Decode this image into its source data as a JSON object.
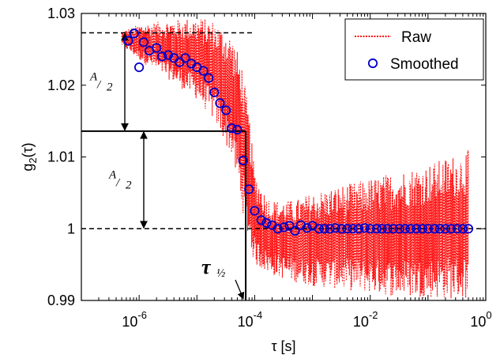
{
  "chart_data": {
    "type": "line",
    "title": "",
    "xlabel": "τ [s]",
    "ylabel": "g2(τ)",
    "ylabel_main": "g",
    "ylabel_sub": "2",
    "ylabel_rest": "(τ)",
    "x_scale": "log",
    "xlim": [
      1e-07,
      1
    ],
    "ylim": [
      0.99,
      1.03
    ],
    "grid": false,
    "legend_position": "top-right",
    "x_ticks": [
      {
        "value": 1e-06,
        "base": "10",
        "exp": "-6"
      },
      {
        "value": 0.0001,
        "base": "10",
        "exp": "-4"
      },
      {
        "value": 0.01,
        "base": "10",
        "exp": "-2"
      },
      {
        "value": 1,
        "base": "10",
        "exp": "0"
      }
    ],
    "y_ticks": [
      {
        "value": 0.99,
        "label": "0.99"
      },
      {
        "value": 1.0,
        "label": "1"
      },
      {
        "value": 1.01,
        "label": "1.01"
      },
      {
        "value": 1.02,
        "label": "1.02"
      },
      {
        "value": 1.03,
        "label": "1.03"
      }
    ],
    "series": [
      {
        "name": "Raw",
        "color": "#ff0000",
        "style": "dotted",
        "envelope_x": [
          5e-07,
          1e-06,
          3e-06,
          1e-05,
          2e-05,
          4e-05,
          6e-05,
          8e-05,
          0.0001,
          0.00015,
          0.0002,
          0.0005,
          0.001,
          0.003,
          0.01,
          0.03,
          0.1,
          0.5
        ],
        "envelope_upper": [
          1.0275,
          1.0285,
          1.029,
          1.0295,
          1.029,
          1.027,
          1.023,
          1.016,
          1.008,
          1.005,
          1.004,
          1.004,
          1.005,
          1.006,
          1.007,
          1.008,
          1.009,
          1.011
        ],
        "envelope_lower": [
          1.0255,
          1.0235,
          1.021,
          1.018,
          1.015,
          1.01,
          1.003,
          0.998,
          0.995,
          0.994,
          0.9935,
          0.9925,
          0.992,
          0.9915,
          0.991,
          0.9905,
          0.9903,
          0.9901
        ]
      },
      {
        "name": "Smoothed",
        "color": "#0000cc",
        "marker": "circle",
        "x": [
          6.5e-07,
          8.2e-07,
          1e-06,
          1.2e-06,
          1.5e-06,
          2e-06,
          2.5e-06,
          3.2e-06,
          4e-06,
          5e-06,
          6.3e-06,
          8e-06,
          1e-05,
          1.3e-05,
          1.6e-05,
          2e-05,
          2.5e-05,
          3.2e-05,
          4e-05,
          5e-05,
          6.3e-05,
          8e-05,
          0.0001,
          0.00013,
          0.00016,
          0.0002,
          0.00025,
          0.00032,
          0.0004,
          0.0005,
          0.00063,
          0.0008,
          0.001,
          0.0013,
          0.0016,
          0.002,
          0.0025,
          0.0032,
          0.004,
          0.005,
          0.0063,
          0.008,
          0.01,
          0.013,
          0.016,
          0.02,
          0.025,
          0.032,
          0.04,
          0.05,
          0.063,
          0.08,
          0.1,
          0.13,
          0.16,
          0.2,
          0.25,
          0.32,
          0.4,
          0.5
        ],
        "y": [
          1.0262,
          1.0272,
          1.0225,
          1.026,
          1.0248,
          1.0252,
          1.024,
          1.0242,
          1.0238,
          1.0232,
          1.0238,
          1.023,
          1.0225,
          1.022,
          1.021,
          1.019,
          1.0175,
          1.0165,
          1.014,
          1.0138,
          1.0095,
          1.0055,
          1.0025,
          1.0012,
          1.0008,
          1.0005,
          1.0,
          1.0002,
          1.0004,
          0.9997,
          1.0005,
          1.0001,
          1.0004,
          1.0,
          1.0,
          1.0,
          1.0001,
          1.0,
          1.0,
          1.0,
          1.0,
          1.0001,
          1.0,
          1.0,
          1.0,
          1.0,
          1.0,
          1.0,
          1.0,
          1.0,
          1.0,
          1.0,
          1.0,
          1.0,
          1.0,
          1.0,
          1.0,
          1.0,
          1.0,
          1.0
        ]
      }
    ],
    "annotations": {
      "top_plateau_y": 1.0273,
      "half_level_y": 1.0136,
      "baseline_y": 1.0,
      "tau_half_x": 7e-05,
      "dashed_top_x_end": 0.0001,
      "half_A_upper": {
        "num": "A",
        "den": "2"
      },
      "half_A_lower": {
        "num": "A",
        "den": "2"
      },
      "tau_label": {
        "symbol": "τ",
        "sub": "½"
      }
    }
  }
}
